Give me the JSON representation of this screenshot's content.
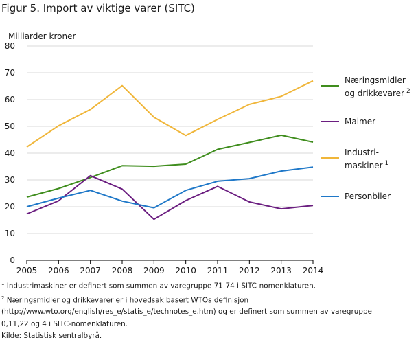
{
  "title": "Figur 5. Import av viktige varer (SITC)",
  "chart_data": {
    "type": "line",
    "ylabel": "Milliarder  kroner",
    "x": [
      "2005",
      "2006",
      "2007",
      "2008",
      "2009",
      "2010",
      "2011",
      "2012",
      "2013",
      "2014"
    ],
    "ylim": [
      0,
      80
    ],
    "yticks": [
      0,
      10,
      20,
      30,
      40,
      50,
      60,
      70,
      80
    ],
    "grid": true,
    "legend_position": "right",
    "series": [
      {
        "name": "Næringsmidler og drikkevarer",
        "label_lines": [
          "Næringsmidler",
          "og drikkevarer"
        ],
        "sup": "2",
        "color": "#3f8d1d",
        "values": [
          23.6,
          26.8,
          30.9,
          35.3,
          35.1,
          35.9,
          41.4,
          44.0,
          46.7,
          44.1
        ]
      },
      {
        "name": "Malmer",
        "label_lines": [
          "Malmer"
        ],
        "sup": "",
        "color": "#6b1e80",
        "values": [
          17.3,
          22.2,
          31.6,
          26.6,
          15.3,
          22.3,
          27.6,
          21.8,
          19.2,
          20.5
        ]
      },
      {
        "name": "Industrimaskiner",
        "label_lines": [
          "Industri-",
          "maskiner"
        ],
        "sup": "1",
        "color": "#f0b63a",
        "values": [
          42.3,
          50.2,
          56.3,
          65.2,
          53.4,
          46.6,
          52.6,
          58.2,
          61.2,
          67.0
        ]
      },
      {
        "name": "Personbiler",
        "label_lines": [
          "Personbiler"
        ],
        "sup": "",
        "color": "#1f78c8",
        "values": [
          20.0,
          23.2,
          26.1,
          22.1,
          19.6,
          26.1,
          29.5,
          30.5,
          33.3,
          34.8
        ]
      }
    ]
  },
  "notes": [
    {
      "sup": "1",
      "text": " Industrimaskiner er definert som summen av varegruppe 71-74 i SITC-nomenklaturen."
    },
    {
      "sup": "2",
      "text": " Næringsmidler og drikkevarer  er i hovedsak basert WTOs definisjon"
    },
    {
      "sup": "",
      "text": "(http://www.wto.org/english/res_e/statis_e/technotes_e.htm)  og er definert som summen av varegruppe"
    },
    {
      "sup": "",
      "text": "0,11,22 og 4 i SITC-nomenklaturen."
    },
    {
      "sup": "",
      "text": "Kilde: Statistisk sentralbyrå."
    }
  ]
}
